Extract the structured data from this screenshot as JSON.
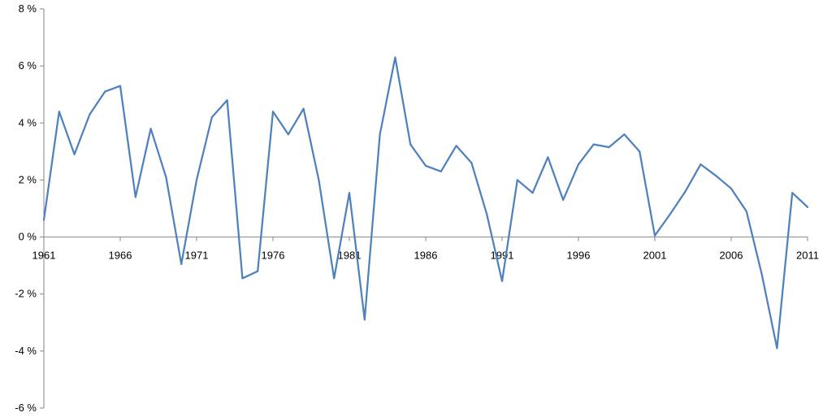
{
  "chart_data": {
    "type": "line",
    "title": "",
    "xlabel": "",
    "ylabel": "",
    "grid": false,
    "legend": "none",
    "x": [
      1961,
      1962,
      1963,
      1964,
      1965,
      1966,
      1967,
      1968,
      1969,
      1970,
      1971,
      1972,
      1973,
      1974,
      1975,
      1976,
      1977,
      1978,
      1979,
      1980,
      1981,
      1982,
      1983,
      1984,
      1985,
      1986,
      1987,
      1988,
      1989,
      1990,
      1991,
      1992,
      1993,
      1994,
      1995,
      1996,
      1997,
      1998,
      1999,
      2000,
      2001,
      2002,
      2003,
      2004,
      2005,
      2006,
      2007,
      2008,
      2009,
      2010,
      2011
    ],
    "xlim": [
      1961,
      2011
    ],
    "x_ticks": [
      "1961",
      "1966",
      "1971",
      "1976",
      "1981",
      "1986",
      "1991",
      "1996",
      "2001",
      "2006",
      "2011"
    ],
    "ylim": [
      -6,
      8
    ],
    "y_ticks": [
      "8 %",
      "6 %",
      "4 %",
      "2 %",
      "0 %",
      "-2 %",
      "-4 %",
      "-6 %"
    ],
    "y_tick_values": [
      8,
      6,
      4,
      2,
      0,
      -2,
      -4,
      -6
    ],
    "series": [
      {
        "color": "#4F81BD",
        "values": [
          0.6,
          4.4,
          2.9,
          4.3,
          5.1,
          5.3,
          1.4,
          3.8,
          2.1,
          -0.95,
          2.0,
          4.2,
          4.8,
          -1.45,
          -1.2,
          4.4,
          3.6,
          4.5,
          2.0,
          -1.45,
          1.55,
          -2.9,
          3.6,
          6.3,
          3.25,
          2.5,
          2.3,
          3.2,
          2.6,
          0.8,
          -1.55,
          2.0,
          1.55,
          2.8,
          1.3,
          2.55,
          3.25,
          3.15,
          3.6,
          3.0,
          0.05,
          0.8,
          1.6,
          2.55,
          2.15,
          1.7,
          0.9,
          -1.3,
          -3.9,
          1.55,
          1.05
        ]
      }
    ]
  }
}
